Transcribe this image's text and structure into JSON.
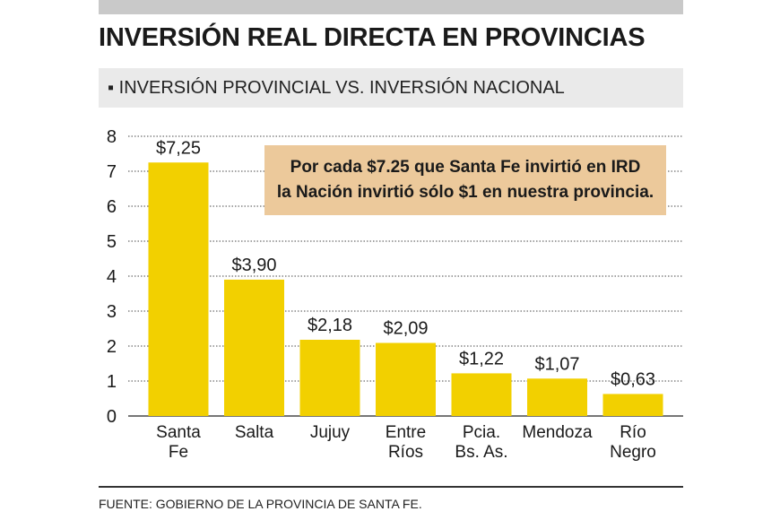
{
  "title": "INVERSIÓN REAL DIRECTA EN PROVINCIAS",
  "subtitle": "INVERSIÓN PROVINCIAL VS. INVERSIÓN NACIONAL",
  "bullet": "▪",
  "source": "FUENTE: GOBIERNO DE LA PROVINCIA DE SANTA FE.",
  "callout": {
    "line1": "Por cada $7.25 que Santa Fe invirtió en IRD",
    "line2": "la Nación invirtió sólo $1 en nuestra provincia."
  },
  "colors": {
    "bar": "#f2d000",
    "callout_bg": "#ecc99b",
    "grid": "#4a4a4a"
  },
  "chart_data": {
    "type": "bar",
    "title": "INVERSIÓN REAL DIRECTA EN PROVINCIAS",
    "xlabel": "",
    "ylabel": "",
    "ylim": [
      0,
      8
    ],
    "yticks": [
      "0",
      "1",
      "2",
      "3",
      "4",
      "5",
      "6",
      "7",
      "8"
    ],
    "grid": true,
    "categories": [
      [
        "Santa",
        "Fe"
      ],
      [
        "Salta"
      ],
      [
        "Jujuy"
      ],
      [
        "Entre",
        "Ríos"
      ],
      [
        "Pcia.",
        "Bs. As."
      ],
      [
        "Mendoza"
      ],
      [
        "Río",
        "Negro"
      ]
    ],
    "values": [
      7.25,
      3.9,
      2.18,
      2.09,
      1.22,
      1.07,
      0.63
    ],
    "value_labels": [
      "$7,25",
      "$3,90",
      "$2,18",
      "$2,09",
      "$1,22",
      "$1,07",
      "$0,63"
    ]
  }
}
